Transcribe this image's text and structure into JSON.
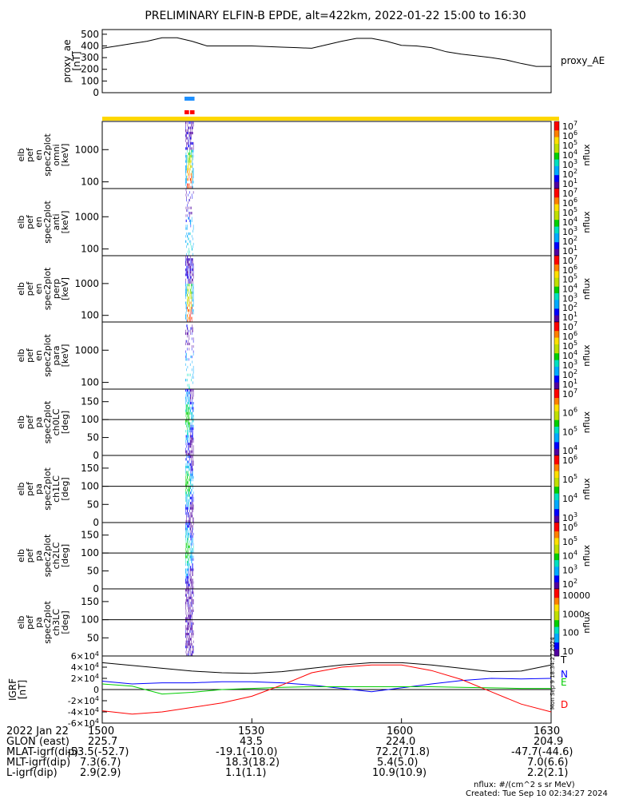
{
  "figure": {
    "title": "PRELIMINARY ELFIN-B EPDE, alt=422km, 2022-01-22 15:00 to 16:30",
    "side_stamp": "Mon Sep 9 18:34:27 2024",
    "credits": [
      "nflux: #/(cm^2 s sr MeV)",
      "Created: Tue Sep 10 02:34:27 2024"
    ]
  },
  "chart_data": [
    {
      "type": "line",
      "panel": "proxy_ae",
      "ylabel": [
        "proxy_ae",
        "[nT]"
      ],
      "legend": "proxy_AE",
      "yticks": [
        "500",
        "400",
        "300",
        "200",
        "100",
        "0"
      ],
      "ylim": [
        0,
        540
      ],
      "x_minutes": [
        0,
        3,
        6,
        9,
        12,
        15,
        18,
        21,
        24,
        27,
        30,
        33,
        36,
        39,
        42,
        45,
        48,
        51,
        54,
        57,
        60,
        63,
        66,
        69,
        72,
        75,
        78,
        81,
        84,
        87,
        90
      ],
      "values": [
        380,
        400,
        420,
        440,
        470,
        470,
        440,
        400,
        400,
        400,
        400,
        395,
        390,
        385,
        380,
        410,
        440,
        465,
        465,
        440,
        405,
        400,
        385,
        350,
        330,
        315,
        300,
        280,
        250,
        225,
        225
      ]
    },
    {
      "type": "heatmap",
      "panel": "spec2plot omni",
      "ylabel": [
        "elb",
        "pef",
        "en",
        "spec2plot",
        "omni",
        "[keV]"
      ],
      "yticks": [
        "1000",
        "100"
      ],
      "zlabel": "nflux",
      "ztick_exponents": [
        "7",
        "6",
        "5",
        "4",
        "3",
        "2",
        "1"
      ],
      "active_interval_minutes": [
        16.5,
        18.5
      ]
    },
    {
      "type": "heatmap",
      "panel": "spec2plot anti",
      "ylabel": [
        "elb",
        "pef",
        "en",
        "spec2plot",
        "anti",
        "[keV]"
      ],
      "yticks": [
        "1000",
        "100"
      ],
      "zlabel": "nflux",
      "ztick_exponents": [
        "7",
        "6",
        "5",
        "4",
        "3",
        "2",
        "1"
      ]
    },
    {
      "type": "heatmap",
      "panel": "spec2plot perp",
      "ylabel": [
        "elb",
        "pef",
        "en",
        "spec2plot",
        "perp",
        "[keV]"
      ],
      "yticks": [
        "1000",
        "100"
      ],
      "zlabel": "nflux",
      "ztick_exponents": [
        "7",
        "6",
        "5",
        "4",
        "3",
        "2",
        "1"
      ]
    },
    {
      "type": "heatmap",
      "panel": "spec2plot para",
      "ylabel": [
        "elb",
        "pef",
        "en",
        "spec2plot",
        "para",
        "[keV]"
      ],
      "yticks": [
        "1000",
        "100"
      ],
      "zlabel": "nflux",
      "ztick_exponents": [
        "7",
        "6",
        "5",
        "4",
        "3",
        "2",
        "1"
      ]
    },
    {
      "type": "heatmap",
      "panel": "pa ch0LC",
      "ylabel": [
        "elb",
        "pef",
        "pa",
        "spec2plot",
        "ch0LC",
        "[deg]"
      ],
      "yticks": [
        "150",
        "100",
        "50",
        "0"
      ],
      "zlabel": "nflux",
      "ztick_exponents": [
        "7",
        "6",
        "5",
        "4"
      ]
    },
    {
      "type": "heatmap",
      "panel": "pa ch1LC",
      "ylabel": [
        "elb",
        "pef",
        "pa",
        "spec2plot",
        "ch1LC",
        "[deg]"
      ],
      "yticks": [
        "150",
        "100",
        "50",
        "0"
      ],
      "zlabel": "nflux",
      "ztick_exponents": [
        "6",
        "5",
        "4",
        "3"
      ]
    },
    {
      "type": "heatmap",
      "panel": "pa ch2LC",
      "ylabel": [
        "elb",
        "pef",
        "pa",
        "spec2plot",
        "ch2LC",
        "[deg]"
      ],
      "yticks": [
        "150",
        "100",
        "50",
        "0"
      ],
      "zlabel": "nflux",
      "ztick_exponents": [
        "6",
        "5",
        "4",
        "3",
        "2"
      ]
    },
    {
      "type": "heatmap",
      "panel": "pa ch3LC",
      "ylabel": [
        "elb",
        "pef",
        "pa",
        "spec2plot",
        "ch3LC",
        "[deg]"
      ],
      "yticks": [
        "150",
        "100",
        "50"
      ],
      "zlabel": "nflux",
      "zticks": [
        "10000",
        "1000",
        "100",
        "10"
      ]
    },
    {
      "type": "line",
      "panel": "IGRF",
      "ylabel": [
        "IGRF",
        "[nT]"
      ],
      "ytick_mantissas": [
        "6",
        "4",
        "2",
        "0",
        "-2",
        "-4",
        "-6"
      ],
      "ylim": [
        -60000,
        60000
      ],
      "x_minutes": [
        0,
        6,
        12,
        18,
        24,
        30,
        36,
        42,
        48,
        54,
        60,
        66,
        72,
        78,
        84,
        90
      ],
      "series": [
        {
          "name": "T",
          "color": "#000000",
          "values": [
            48000,
            43000,
            38000,
            33000,
            30000,
            29000,
            32000,
            38000,
            44000,
            48000,
            48000,
            44000,
            38000,
            32000,
            33000,
            44000
          ]
        },
        {
          "name": "N",
          "color": "#0000ff",
          "values": [
            15000,
            10000,
            12000,
            12000,
            14000,
            14000,
            12000,
            8000,
            2000,
            -4000,
            3000,
            10000,
            16000,
            20000,
            19000,
            20000
          ]
        },
        {
          "name": "E",
          "color": "#00cc00",
          "values": [
            10000,
            6000,
            -8000,
            -5000,
            0,
            2000,
            4000,
            5000,
            5000,
            5000,
            5000,
            5000,
            4000,
            3000,
            2000,
            2000
          ]
        },
        {
          "name": "D",
          "color": "#ff0000",
          "values": [
            -38000,
            -44000,
            -40000,
            -32000,
            -24000,
            -12000,
            8000,
            30000,
            40000,
            44000,
            44000,
            34000,
            18000,
            -4000,
            -26000,
            -40000
          ]
        }
      ]
    }
  ],
  "footer": {
    "labels": [
      "2022 Jan 22",
      "GLON (east)",
      "MLAT-igrf(dip)",
      "MLT-igrf(dip)",
      "L-igrf(dip)"
    ],
    "times": [
      "1500",
      "1530",
      "1600",
      "1630"
    ],
    "columns": [
      [
        "225.7",
        "-53.5(-52.7)",
        "7.3(6.7)",
        "2.9(2.9)"
      ],
      [
        "43.5",
        "-19.1(-10.0)",
        "18.3(18.2)",
        "1.1(1.1)"
      ],
      [
        "224.0",
        "72.2(71.8)",
        "5.4(5.0)",
        "10.9(10.9)"
      ],
      [
        "204.9",
        "-47.7(-44.6)",
        "7.0(6.6)",
        "2.2(2.1)"
      ]
    ]
  }
}
